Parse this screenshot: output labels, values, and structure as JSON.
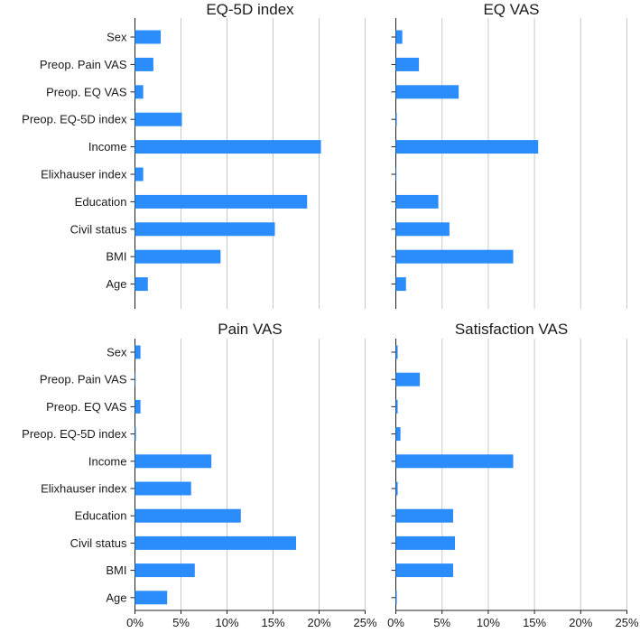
{
  "chart_data": {
    "type": "bar",
    "orientation": "horizontal",
    "categories": [
      "Sex",
      "Preop. Pain VAS",
      "Preop. EQ VAS",
      "Preop. EQ-5D index",
      "Income",
      "Elixhauser index",
      "Education",
      "Civil status",
      "BMI",
      "Age"
    ],
    "xlim": [
      0,
      25
    ],
    "xticks": [
      0,
      5,
      10,
      15,
      20,
      25
    ],
    "xtick_labels": [
      "0%",
      "5%",
      "10%",
      "15%",
      "20%",
      "25%"
    ],
    "bar_color": "#2b8cfb",
    "grid": true,
    "panels": [
      {
        "title": "EQ-5D index",
        "values": [
          2.8,
          2.0,
          0.9,
          5.1,
          20.2,
          0.9,
          18.7,
          15.2,
          9.3,
          1.4
        ]
      },
      {
        "title": "EQ VAS",
        "values": [
          0.7,
          2.5,
          6.8,
          0.1,
          15.4,
          0.05,
          4.6,
          5.8,
          12.7,
          1.1
        ]
      },
      {
        "title": "Pain VAS",
        "values": [
          0.6,
          0.05,
          0.6,
          0.1,
          8.3,
          6.1,
          11.5,
          17.5,
          6.5,
          3.5
        ]
      },
      {
        "title": "Satisfaction VAS",
        "values": [
          0.2,
          2.6,
          0.2,
          0.5,
          12.7,
          0.2,
          6.2,
          6.4,
          6.2,
          0.1
        ]
      }
    ]
  }
}
